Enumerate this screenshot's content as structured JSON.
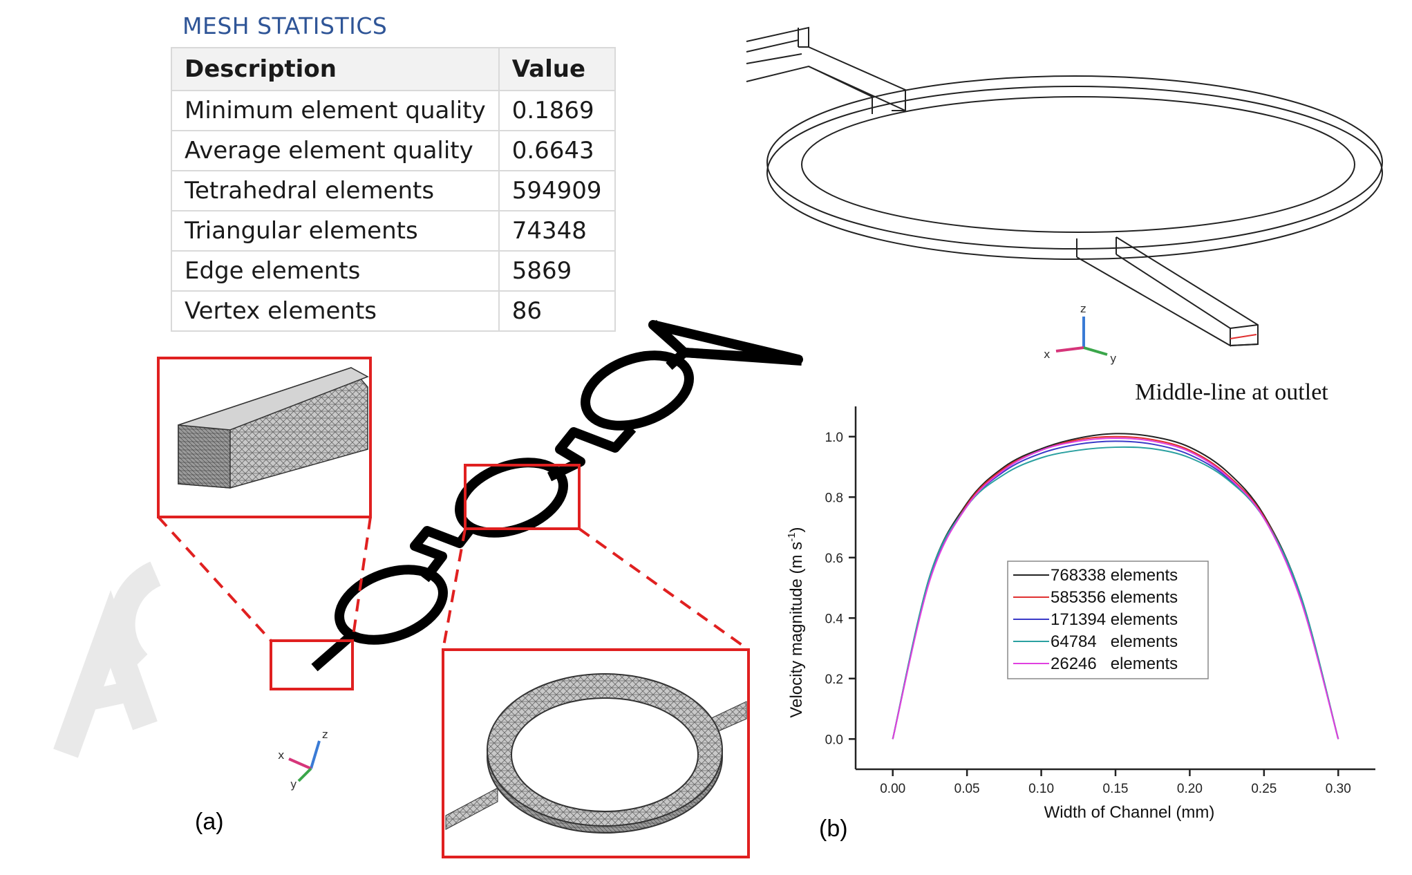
{
  "mesh_statistics": {
    "title": "MESH STATISTICS",
    "columns": [
      "Description",
      "Value"
    ],
    "rows": [
      [
        "Minimum element quality",
        "0.1869"
      ],
      [
        "Average element quality",
        "0.6643"
      ],
      [
        "Tetrahedral elements",
        "594909"
      ],
      [
        "Triangular elements",
        "74348"
      ],
      [
        "Edge elements",
        "5869"
      ],
      [
        "Vertex elements",
        "86"
      ]
    ]
  },
  "panels": {
    "a": "(a)",
    "b": "(b)"
  },
  "axis_triads": {
    "top": {
      "z": "z",
      "x": "x",
      "y": "y"
    },
    "bottom": {
      "z": "z",
      "x": "x",
      "y": "y"
    }
  },
  "chart_data": {
    "type": "line",
    "title": "Middle-line  at outlet",
    "xlabel": "Width of Channel (mm)",
    "ylabel": "Velocity  magnitude  (m s",
    "ylabel_sup": "-1",
    "ylabel_close": ")",
    "xlim": [
      -0.025,
      0.325
    ],
    "ylim": [
      -0.1,
      1.1
    ],
    "xticks": [
      "0.00",
      "0.05",
      "0.10",
      "0.15",
      "0.20",
      "0.25",
      "0.30"
    ],
    "yticks": [
      "0.0",
      "0.2",
      "0.4",
      "0.6",
      "0.8",
      "1.0"
    ],
    "x": [
      0.0,
      0.025,
      0.05,
      0.075,
      0.1,
      0.125,
      0.15,
      0.175,
      0.2,
      0.225,
      0.25,
      0.275,
      0.3
    ],
    "series": [
      {
        "name": "768338 elements",
        "color": "#222222",
        "values": [
          0.0,
          0.54,
          0.78,
          0.9,
          0.96,
          0.995,
          1.01,
          1.0,
          0.965,
          0.885,
          0.74,
          0.47,
          0.0
        ]
      },
      {
        "name": "585356 elements",
        "color": "#e03030",
        "values": [
          0.0,
          0.53,
          0.775,
          0.895,
          0.955,
          0.99,
          1.0,
          0.99,
          0.955,
          0.875,
          0.735,
          0.465,
          0.0
        ]
      },
      {
        "name": "171394 elements",
        "color": "#3a3ac8",
        "values": [
          0.0,
          0.53,
          0.77,
          0.885,
          0.945,
          0.975,
          0.985,
          0.975,
          0.94,
          0.865,
          0.73,
          0.46,
          0.0
        ]
      },
      {
        "name": "64784   elements",
        "color": "#2aa0a0",
        "values": [
          0.0,
          0.54,
          0.77,
          0.875,
          0.93,
          0.955,
          0.965,
          0.96,
          0.93,
          0.86,
          0.73,
          0.47,
          0.0
        ]
      },
      {
        "name": "26246   elements",
        "color": "#e040e0",
        "values": [
          0.0,
          0.525,
          0.77,
          0.89,
          0.955,
          0.985,
          0.995,
          0.985,
          0.95,
          0.87,
          0.73,
          0.455,
          0.0
        ]
      }
    ],
    "legend_position": "center"
  }
}
